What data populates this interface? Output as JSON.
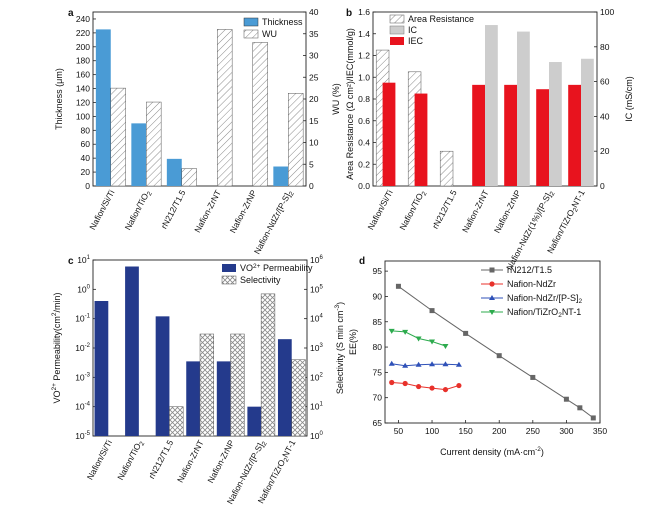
{
  "colors": {
    "blue": "#4a9bd5",
    "navy": "#243a8c",
    "red": "#e8131e",
    "gray": "#cdcdcd",
    "hatch": "#8a8a8a",
    "line_gray": "#666666",
    "line_red": "#e8312b",
    "line_blue": "#2f51b8",
    "line_green": "#2dab4e"
  },
  "chart_data": [
    {
      "panel": "a",
      "type": "bar",
      "categories": [
        "Nafion/Si/Ti",
        "Nafion/TiO2",
        "rN212/T1.5",
        "Nafion-ZrNT",
        "Nafion-ZrNP",
        "Nafion-NdZr/[P-S]2"
      ],
      "series": [
        {
          "name": "Thickness",
          "axis": "left",
          "style": "solid",
          "color": "#4a9bd5",
          "values": [
            225,
            90,
            39,
            null,
            null,
            28
          ]
        },
        {
          "name": "WU",
          "axis": "right",
          "style": "hatch",
          "values": [
            22.5,
            19.3,
            4,
            36,
            33,
            21.3
          ]
        }
      ],
      "ylabel": "Thickness (μm)",
      "ylabel_right": "WU (%)",
      "ylim": [
        0,
        250
      ],
      "ylim_right": [
        0,
        40
      ],
      "yticks": [
        0,
        20,
        40,
        60,
        80,
        100,
        120,
        140,
        160,
        180,
        200,
        220,
        240
      ],
      "yticks_right": [
        0,
        5,
        10,
        15,
        20,
        25,
        30,
        35,
        40
      ],
      "legend_position": "top-right"
    },
    {
      "panel": "b",
      "type": "bar",
      "categories": [
        "Nafion/Si/Ti",
        "Nafion/TiO2",
        "rN212/T1.5",
        "Nafion-ZrNT",
        "Nafion-ZrNP",
        "Nafion-NdZr(1%)/[P-S]2",
        "Nafion/TiZrO2NT-1"
      ],
      "series": [
        {
          "name": "Area Resistance",
          "axis": "left",
          "style": "hatch",
          "values": [
            1.25,
            1.05,
            0.32,
            null,
            null,
            null,
            null
          ]
        },
        {
          "name": "IC",
          "axis": "right",
          "style": "solid",
          "color": "#cdcdcd",
          "values": null,
          "values_left_scale": [
            null,
            null,
            null,
            1.48,
            1.42,
            1.14,
            1.17
          ]
        },
        {
          "name": "IEC",
          "axis": "left",
          "style": "solid",
          "color": "#e8131e",
          "values": [
            0.95,
            0.85,
            null,
            0.93,
            0.93,
            0.89,
            0.93
          ]
        }
      ],
      "ylabel": "Area Resistance (Ω cm²)/IEC(mmol/g)",
      "ylabel_right": "IC (mS/cm)",
      "ylim": [
        0,
        1.6
      ],
      "ylim_right": [
        0,
        100
      ],
      "yticks": [
        0.0,
        0.2,
        0.4,
        0.6,
        0.8,
        1.0,
        1.2,
        1.4,
        1.6
      ],
      "yticks_right": [
        0,
        20,
        40,
        60,
        80,
        100
      ],
      "legend_position": "top-center"
    },
    {
      "panel": "c",
      "type": "bar",
      "categories": [
        "Nafion/Si/Ti",
        "Nafion/TiO2",
        "rN212/T1.5",
        "Nafion-ZrNT",
        "Nafion-ZrNP",
        "Nafion-NdZr/[P-S]2",
        "Nafion/TiZrO2NT-1"
      ],
      "series": [
        {
          "name": "VO2+ Permeability",
          "axis": "left",
          "style": "solid",
          "color": "#243a8c",
          "values": [
            0.4,
            6.0,
            0.12,
            0.0035,
            0.0035,
            0.0001,
            0.02
          ]
        },
        {
          "name": "Selectivity",
          "axis": "right",
          "style": "crosshatch",
          "values": [
            null,
            null,
            10,
            3000,
            3000,
            70000,
            400
          ]
        }
      ],
      "ylabel": "VO2+ Permeability(cm²/min)",
      "ylabel_right": "Selectivity (S min cm⁻³)",
      "yscale": "log",
      "ylim": [
        1e-05,
        10
      ],
      "ylim_right": [
        1,
        1000000
      ],
      "yticks": [
        "10^-5",
        "10^-4",
        "10^-3",
        "10^-2",
        "10^-1",
        "10^0",
        "10^1"
      ],
      "yticks_right": [
        "10^0",
        "10^1",
        "10^2",
        "10^3",
        "10^4",
        "10^5",
        "10^6"
      ],
      "legend_position": "top-right"
    },
    {
      "panel": "d",
      "type": "line",
      "xlabel": "Current density (mA cm⁻²)",
      "ylabel": "EE(%)",
      "xlim": [
        30,
        350
      ],
      "ylim": [
        65,
        97
      ],
      "xticks": [
        50,
        100,
        150,
        200,
        250,
        300,
        350
      ],
      "yticks": [
        65,
        70,
        75,
        80,
        85,
        90,
        95
      ],
      "series": [
        {
          "name": "rN212/T1.5",
          "color": "#666666",
          "marker": "square",
          "x": [
            50,
            100,
            150,
            200,
            250,
            300,
            320,
            340
          ],
          "y": [
            92,
            87.2,
            82.7,
            78.3,
            74,
            69.7,
            68,
            66
          ]
        },
        {
          "name": "Nafion-NdZr",
          "color": "#e8312b",
          "marker": "circle",
          "x": [
            40,
            60,
            80,
            100,
            120,
            140
          ],
          "y": [
            73,
            72.8,
            72.2,
            71.9,
            71.6,
            72.4
          ]
        },
        {
          "name": "Nafion-NdZr/[P-S]2",
          "color": "#2f51b8",
          "marker": "triangle-up",
          "x": [
            40,
            60,
            80,
            100,
            120,
            140
          ],
          "y": [
            76.7,
            76.3,
            76.5,
            76.6,
            76.6,
            76.5
          ]
        },
        {
          "name": "Nafion/TiZrO2NT-1",
          "color": "#2dab4e",
          "marker": "triangle-down",
          "x": [
            40,
            60,
            80,
            100,
            120
          ],
          "y": [
            83.2,
            83,
            81.7,
            81.1,
            80.2
          ]
        }
      ],
      "legend_position": "top-right"
    }
  ],
  "panels": {
    "a": {
      "label": "a",
      "ylabel": "Thickness (μm)",
      "ylabel_right": "WU (%)",
      "legend": [
        "Thickness",
        "WU"
      ]
    },
    "b": {
      "label": "b",
      "ylabel": "Area Resistance (Ω cm²)/IEC(mmol/g)",
      "ylabel_right": "IC (mS/cm)",
      "legend": [
        "Area Resistance",
        "IC",
        "IEC"
      ]
    },
    "c": {
      "label": "c",
      "ylabel_right": "Selectivity (S min cm",
      "legend_selectivity": "Selectivity"
    },
    "d": {
      "label": "d",
      "xlabel": "Current density (mA·cm",
      "ylabel": "EE(%)",
      "legend_rn": "rN212/T1.5",
      "legend_ndzr": "Nafion-NdZr"
    }
  }
}
